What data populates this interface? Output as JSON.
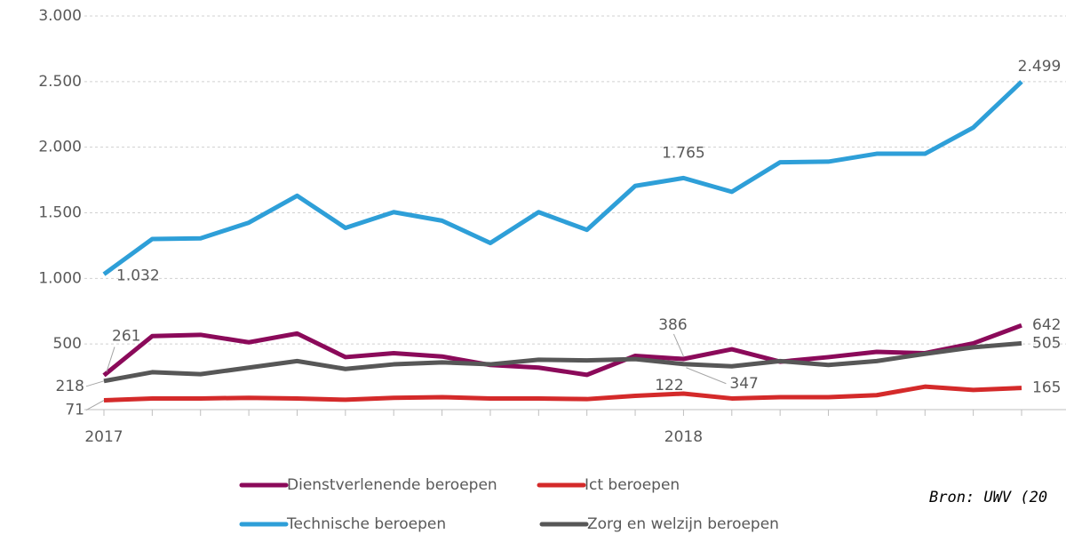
{
  "chart_data": {
    "type": "line",
    "categories": [
      "2017",
      null,
      null,
      null,
      null,
      null,
      null,
      null,
      null,
      null,
      null,
      null,
      "2018",
      null,
      null,
      null,
      null,
      null,
      null,
      null
    ],
    "ylim": [
      0,
      3000
    ],
    "yticks": [
      {
        "value": 500,
        "label": "500"
      },
      {
        "value": 1000,
        "label": "1.000"
      },
      {
        "value": 1500,
        "label": "1.500"
      },
      {
        "value": 2000,
        "label": "2.000"
      },
      {
        "value": 2500,
        "label": "2.500"
      },
      {
        "value": 3000,
        "label": "3.000"
      }
    ],
    "grid": true,
    "source": "Bron: UWV (20",
    "series": [
      {
        "name": "Dienstverlenende beroepen",
        "color": "#8b0a5a",
        "values": [
          261,
          560,
          570,
          513,
          580,
          400,
          430,
          405,
          340,
          320,
          265,
          410,
          386,
          460,
          365,
          400,
          440,
          430,
          505,
          642
        ],
        "value_labels": [
          "261",
          null,
          null,
          null,
          null,
          null,
          null,
          null,
          null,
          null,
          null,
          null,
          "386",
          null,
          null,
          null,
          null,
          null,
          null,
          "642"
        ]
      },
      {
        "name": "Ict beroepen",
        "color": "#d42a2a",
        "values": [
          71,
          85,
          85,
          90,
          85,
          75,
          90,
          95,
          85,
          85,
          80,
          105,
          122,
          85,
          95,
          95,
          110,
          175,
          150,
          165
        ],
        "value_labels": [
          "71",
          null,
          null,
          null,
          null,
          null,
          null,
          null,
          null,
          null,
          null,
          null,
          "122",
          null,
          null,
          null,
          null,
          null,
          null,
          "165"
        ]
      },
      {
        "name": "Technische beroepen",
        "color": "#2e9fd8",
        "values": [
          1032,
          1300,
          1305,
          1425,
          1630,
          1385,
          1505,
          1440,
          1270,
          1505,
          1370,
          1705,
          1765,
          1660,
          1885,
          1890,
          1950,
          1950,
          2150,
          2499
        ],
        "value_labels": [
          "1.032",
          null,
          null,
          null,
          null,
          null,
          null,
          null,
          null,
          null,
          null,
          null,
          "1.765",
          null,
          null,
          null,
          null,
          null,
          null,
          "2.499"
        ]
      },
      {
        "name": "Zorg en welzijn beroepen",
        "color": "#575757",
        "values": [
          218,
          285,
          270,
          320,
          370,
          310,
          345,
          360,
          345,
          380,
          375,
          385,
          347,
          330,
          370,
          340,
          370,
          425,
          475,
          505
        ],
        "value_labels": [
          "218",
          null,
          null,
          null,
          null,
          null,
          null,
          null,
          null,
          null,
          null,
          null,
          "347",
          null,
          null,
          null,
          null,
          null,
          null,
          "505"
        ]
      }
    ]
  }
}
